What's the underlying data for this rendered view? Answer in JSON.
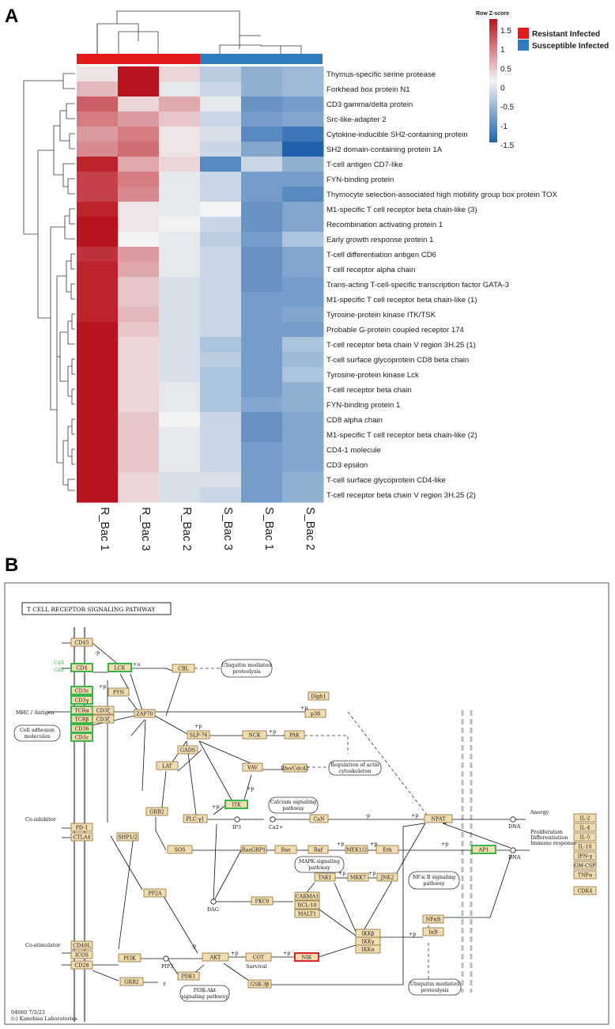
{
  "panel_a": {
    "letter": "A",
    "legend": {
      "scale_title": "Row Z-score",
      "ticks": [
        "1.5",
        "1",
        "0.5",
        "0",
        "-0.5",
        "-1",
        "-1.5"
      ],
      "groups": [
        {
          "label": "Resistant Infected",
          "color": "#e31a1c"
        },
        {
          "label": "Susceptible Infected",
          "color": "#2f7dbf"
        }
      ]
    }
  },
  "chart_data": {
    "type": "heatmap",
    "title": "",
    "value_label": "Row Z-score",
    "zlim": [
      -1.5,
      1.5
    ],
    "color_scale": {
      "low": "#1f63ad",
      "mid": "#f3f3f3",
      "high": "#b8141f"
    },
    "columns": [
      "R_Bac 1",
      "R_Bac 3",
      "R_Bac 2",
      "S_Bac 3",
      "S_Bac 1",
      "S_Bac 2"
    ],
    "column_groups": [
      "Resistant Infected",
      "Resistant Infected",
      "Resistant Infected",
      "Susceptible Infected",
      "Susceptible Infected",
      "Susceptible Infected"
    ],
    "rows": [
      "Thymus-specific serine protease",
      "Forkhead box protein N1",
      "CD3 gamma/delta protein",
      "Src-like-adapter 2",
      "Cytokine-inducible SH2-containing protein",
      "SH2 domain-containing protein 1A",
      "T-cell antigen CD7-like",
      "FYN-binding protein",
      "Thymocyte selection-associated high mobility group box protein TOX",
      "M1-specific T cell receptor beta chain-like (3)",
      "Recombination activating protein 1",
      "Early growth response protein 1",
      "T-cell differentiation antigen CD6",
      "T cell receptor alpha chain",
      "Trans-acting T-cell-specific transcription factor GATA-3",
      "M1-specific T cell receptor beta chain-like (1)",
      "Tyrosine-protein kinase ITK/TSK",
      "Probable G-protein coupled receptor 174",
      "T-cell receptor beta chain V region 3H.25 (1)",
      "T-cell surface glycoprotein CD8 beta chain",
      "Tyrosine-protein kinase Lck",
      "T-cell receptor beta chain",
      "FYN-binding protein 1",
      "CD8 alpha chain",
      "M1-specific T cell receptor beta chain-like (2)",
      "CD4-1 molecule",
      "CD3 epsilon",
      "T-cell surface glycoprotein CD4-like",
      "T-cell receptor beta chain V region 3H.25 (2)"
    ],
    "values": [
      [
        0.1,
        1.8,
        0.2,
        -0.4,
        -0.7,
        -0.6
      ],
      [
        0.4,
        1.6,
        -0.1,
        -0.3,
        -0.7,
        -0.6
      ],
      [
        1.0,
        0.2,
        0.5,
        -0.1,
        -1.0,
        -0.9
      ],
      [
        0.8,
        0.6,
        0.3,
        -0.3,
        -0.9,
        -0.8
      ],
      [
        0.6,
        0.8,
        0.1,
        -0.2,
        -1.1,
        -1.3
      ],
      [
        0.7,
        0.9,
        0.1,
        -0.3,
        -0.8,
        -1.6
      ],
      [
        1.4,
        0.5,
        0.2,
        -1.1,
        -0.3,
        -0.7
      ],
      [
        1.2,
        0.8,
        -0.1,
        -0.3,
        -0.9,
        -0.9
      ],
      [
        1.2,
        0.7,
        -0.1,
        -0.3,
        -0.9,
        -1.1
      ],
      [
        1.4,
        0.1,
        -0.1,
        0.0,
        -1.0,
        -0.8
      ],
      [
        1.5,
        0.1,
        0.0,
        -0.3,
        -1.0,
        -0.8
      ],
      [
        1.7,
        0.0,
        -0.1,
        -0.4,
        -0.9,
        -0.5
      ],
      [
        1.3,
        0.6,
        -0.1,
        -0.3,
        -1.0,
        -0.8
      ],
      [
        1.4,
        0.5,
        -0.1,
        -0.3,
        -1.0,
        -0.8
      ],
      [
        1.4,
        0.3,
        -0.2,
        -0.3,
        -1.0,
        -0.9
      ],
      [
        1.4,
        0.3,
        -0.2,
        -0.3,
        -0.9,
        -0.9
      ],
      [
        1.4,
        0.4,
        -0.2,
        -0.3,
        -0.9,
        -0.8
      ],
      [
        1.5,
        0.3,
        -0.2,
        -0.3,
        -0.9,
        -0.9
      ],
      [
        1.6,
        0.2,
        -0.2,
        -0.5,
        -0.9,
        -0.5
      ],
      [
        1.6,
        0.2,
        -0.2,
        -0.4,
        -0.9,
        -0.6
      ],
      [
        1.6,
        0.2,
        -0.2,
        -0.5,
        -0.9,
        -0.5
      ],
      [
        1.5,
        0.2,
        -0.1,
        -0.5,
        -0.9,
        -0.7
      ],
      [
        1.5,
        0.2,
        -0.1,
        -0.5,
        -0.8,
        -0.7
      ],
      [
        1.5,
        0.3,
        0.0,
        -0.3,
        -1.0,
        -0.8
      ],
      [
        1.5,
        0.3,
        -0.1,
        -0.3,
        -1.0,
        -0.8
      ],
      [
        1.5,
        0.3,
        -0.1,
        -0.3,
        -0.9,
        -0.8
      ],
      [
        1.5,
        0.3,
        -0.1,
        -0.3,
        -0.9,
        -0.8
      ],
      [
        1.6,
        0.2,
        -0.2,
        -0.2,
        -0.9,
        -0.7
      ],
      [
        1.6,
        0.2,
        -0.2,
        -0.3,
        -0.9,
        -0.7
      ]
    ]
  },
  "panel_b": {
    "letter": "B",
    "title": "T CELL RECEPTOR SIGNALING PATHWAY",
    "footer_id": "04660 7/5/23",
    "footer_copyright": "(c) Kanehisa Laboratories",
    "nodes": {
      "cd45": "CD45",
      "cd4": "CD4",
      "cd8": "CD8",
      "lck": "LCK",
      "cbl": "CBL",
      "fyn": "FYN",
      "cd3e": "CD3ε",
      "cd3g": "CD3γ",
      "tcra": "TCRα",
      "tcrb": "TCRβ",
      "cd3z1": "CD3ζ",
      "cd3z2": "CD3ζ",
      "cd3d": "CD3δ",
      "cd3e2": "CD3ε",
      "zap70": "ZAP70",
      "dlgh1": "Dlgh1",
      "p38": "p38",
      "slp76": "SLP-76",
      "nck": "NCK",
      "pak": "PAK",
      "gads": "GADS",
      "lat": "LAT",
      "vav": "VAV",
      "rhocdc42": "Rho/Cdc42",
      "itk": "ITK",
      "grb2": "GRB2",
      "plcg1": "PLC-γ1",
      "can": "CaN",
      "nfat": "NFAT",
      "sos": "SOS",
      "rasgrp1": "RasGRP1",
      "ras": "Ras",
      "raf": "Raf",
      "mek12": "MEK1/2",
      "erk": "Erk",
      "ap1": "AP1",
      "pd1": "PD-1",
      "ctla4": "CTLA4",
      "shp12": "SHP1/2",
      "cd40l": "CD40L",
      "icos": "ICOS",
      "cd28": "CD28",
      "pi3k": "PI3K",
      "pp2a": "PP2A",
      "pdk1": "PDK1",
      "akt": "AKT",
      "cot": "COT",
      "nik": "NIK",
      "gsk3b": "GSK-3β",
      "grb2b": "GRB2",
      "pkcth": "PKCθ",
      "tak1": "TAK1",
      "mkk7": "MKK7",
      "jnk2": "JNK2",
      "carma1": "CARMA1",
      "bcl10": "BCL-10",
      "malt1": "MALT1",
      "ikkb": "IKKβ",
      "ikkg": "IKKγ",
      "ikka": "IKKα",
      "nfkb": "NFκB",
      "ikb": "IκB",
      "il2": "IL-2",
      "il4": "IL-4",
      "il5": "IL-5",
      "il10": "IL-10",
      "ifng": "IFN-γ",
      "gmcsf": "GM-CSF",
      "tnfa": "TNFα",
      "cdk4": "CDK4"
    },
    "labels": {
      "cd4_cd8_side": [
        "Cd4",
        "Cd8"
      ],
      "mhc": "MHC / Antigen",
      "cell_adhesion": [
        "Cell adhesion",
        "molecules"
      ],
      "ubiq1": [
        "Ubiquitin mediated",
        "proteolysis"
      ],
      "actin": [
        "Regulation of actin",
        "cytoskeleton"
      ],
      "calcium": [
        "Calcium signaling",
        "pathway"
      ],
      "mapk": [
        "MAPK signaling",
        "pathway"
      ],
      "nfkb_path": [
        "NF-κ B signaling",
        "pathway"
      ],
      "ubiq2": [
        "Ubiquitin mediated",
        "proteolysis"
      ],
      "pi3k_akt": [
        "PI3K-Akt",
        "signaling pathway"
      ],
      "co_inhibitor": "Co-inhibitor",
      "co_stimulator": "Co-stimulator",
      "anergy": "Anergy",
      "prolif": [
        "Proliferation",
        "Differentiation",
        "Immuno response"
      ],
      "dna1": "DNA",
      "dna2": "DNA",
      "ip3": "IP3",
      "ca": "Ca2+",
      "dag": "DAG",
      "pip3": "PIP3",
      "survival": "Survival",
      "p": "+p",
      "mp": "-p",
      "u": "+u",
      "gamma": "γ"
    }
  }
}
